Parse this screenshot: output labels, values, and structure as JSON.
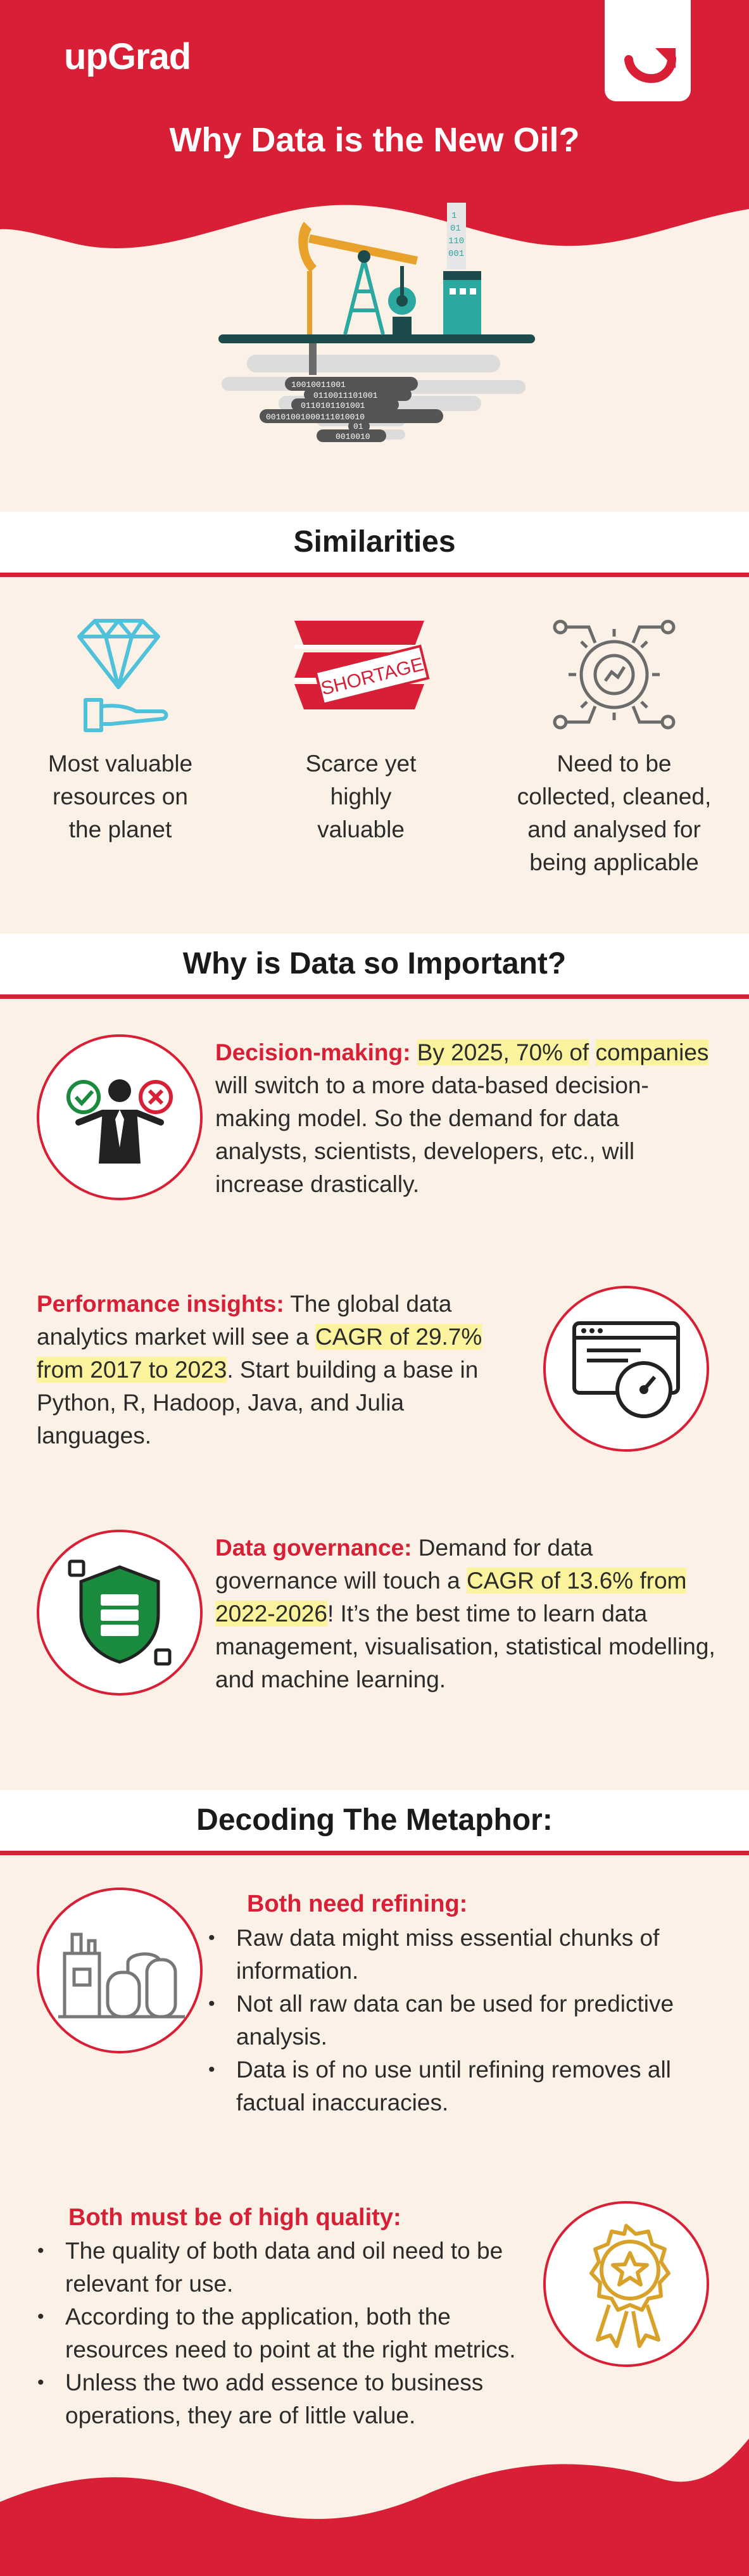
{
  "header": {
    "logo": "upGrad",
    "title": "Why Data is the New Oil?"
  },
  "illustration": {
    "binary_lines": [
      "10010011001",
      "0110011101001",
      "0110101101001",
      "00101001000111010010",
      "01",
      "0010010"
    ],
    "tower_digits": [
      "1",
      "01",
      "110",
      "001"
    ]
  },
  "similarities": {
    "heading": "Similarities",
    "items": [
      {
        "icon": "diamond-in-hand-icon",
        "lines": [
          "Most valuable",
          "resources on",
          "the planet"
        ]
      },
      {
        "icon": "shortage-stack-icon",
        "badge": "SHORTAGE",
        "lines": [
          "Scarce yet",
          "highly",
          "valuable"
        ]
      },
      {
        "icon": "gear-analytics-icon",
        "lines": [
          "Need to be",
          "collected, cleaned,",
          "and analysed for",
          "being applicable"
        ]
      }
    ]
  },
  "importance": {
    "heading": "Why is Data so Important?",
    "decision": {
      "title": "Decision-making:",
      "hl1": "By 2025, 70% of",
      "hl2": "companies",
      "rest": " will switch to a more data-based decision-making model. So the demand for data analysts, scientists, developers, etc., will increase drastically."
    },
    "performance": {
      "title": "Performance insights:",
      "pre": " The global data analytics market will see a ",
      "hl": "CAGR of 29.7% from 2017 to 2023",
      "rest": ". Start building a base in Python, R, Hadoop, Java, and Julia languages."
    },
    "governance": {
      "title": "Data governance:",
      "pre": " Demand for data governance will touch a ",
      "hl": "CAGR of 13.6% from 2022-2026",
      "rest": "! It’s the best time to learn data management, visualisation, statistical modelling, and machine learning."
    }
  },
  "metaphor": {
    "heading": "Decoding The Metaphor:",
    "refining": {
      "title": "Both need refining:",
      "points": [
        "Raw data might miss essential chunks of information.",
        "Not all raw data can be used for predictive analysis.",
        "Data is of no use until refining removes all factual inaccuracies."
      ]
    },
    "quality": {
      "title": "Both must be of high quality:",
      "points": [
        "The quality of both data and oil need to be relevant for use.",
        "According to the application, both the resources need to point at the right metrics.",
        "Unless the two add essence to business operations, they are of little value."
      ]
    }
  },
  "colors": {
    "brand_red": "#d81f36",
    "cream": "#fbf1e6",
    "highlight": "#fbf39d",
    "teal": "#2ba8a0",
    "green": "#1a8a3c"
  }
}
